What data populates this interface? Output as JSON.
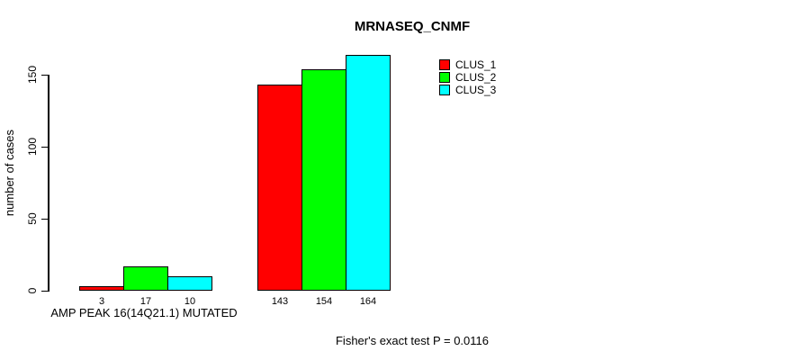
{
  "chart_data": {
    "type": "bar",
    "title": "MRNASEQ_CNMF",
    "ylabel": "number of cases",
    "xlabel": "AMP PEAK 16(14Q21.1) MUTATED",
    "footer": "Fisher's exact test P = 0.0116",
    "group_labels": [
      "AMP PEAK 16(14Q21.1) MUTATED",
      ""
    ],
    "series": [
      {
        "name": "CLUS_1",
        "color": "#ff0000",
        "values": [
          3,
          143
        ]
      },
      {
        "name": "CLUS_2",
        "color": "#00ff00",
        "values": [
          17,
          154
        ]
      },
      {
        "name": "CLUS_3",
        "color": "#00ffff",
        "values": [
          10,
          164
        ]
      }
    ],
    "yticks": [
      0,
      50,
      100,
      150
    ],
    "ylim": [
      0,
      165
    ],
    "grid": false,
    "bar_border_color": "#000000",
    "legend_position": "top-right"
  }
}
